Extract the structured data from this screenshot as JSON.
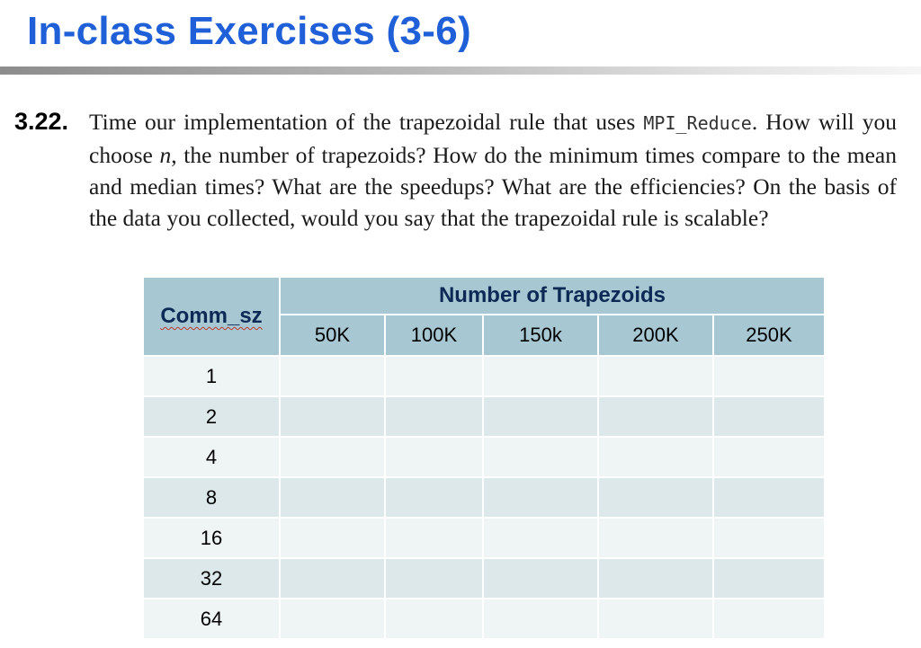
{
  "slide": {
    "title": "In-class Exercises (3-6)"
  },
  "exercise": {
    "number": "3.22.",
    "text_1": "Time our implementation of the trapezoidal rule that uses ",
    "code": "MPI_Reduce",
    "text_2": ". How will you choose ",
    "var": "n",
    "text_3": ", the number of trapezoids? How do the minimum times compare to the mean and median times? What are the speedups? What are the efficiencies? On the basis of the data you collected, would you say that the trapezoidal rule is scalable?"
  },
  "table": {
    "group_header": "Number of Trapezoids",
    "row_header": "Comm_sz",
    "columns": [
      "50K",
      "100K",
      "150k",
      "200K",
      "250K"
    ],
    "rows": [
      {
        "label": "1",
        "cells": [
          "",
          "",
          "",
          "",
          ""
        ]
      },
      {
        "label": "2",
        "cells": [
          "",
          "",
          "",
          "",
          ""
        ]
      },
      {
        "label": "4",
        "cells": [
          "",
          "",
          "",
          "",
          ""
        ]
      },
      {
        "label": "8",
        "cells": [
          "",
          "",
          "",
          "",
          ""
        ]
      },
      {
        "label": "16",
        "cells": [
          "",
          "",
          "",
          "",
          ""
        ]
      },
      {
        "label": "32",
        "cells": [
          "",
          "",
          "",
          "",
          ""
        ]
      },
      {
        "label": "64",
        "cells": [
          "",
          "",
          "",
          "",
          ""
        ]
      }
    ]
  },
  "colors": {
    "title": "#1f5fd8",
    "header_bg": "#a7c7d3",
    "row_light": "#eff4f5",
    "row_dark": "#dde8ea",
    "header_text": "#0c2a55"
  }
}
